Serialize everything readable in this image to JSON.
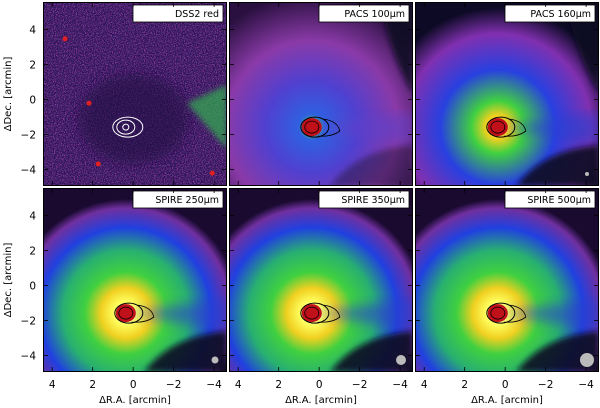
{
  "panels": [
    {
      "label": "DSS2 red",
      "style": "dss",
      "beam": 0
    },
    {
      "label": "PACS 100μm",
      "style": "pacs1",
      "beam": 0
    },
    {
      "label": "PACS 160μm",
      "style": "pacs2",
      "beam": 1
    },
    {
      "label": "SPIRE 250μm",
      "style": "spire",
      "beam": 2
    },
    {
      "label": "SPIRE 350μm",
      "style": "spire",
      "beam": 3
    },
    {
      "label": "SPIRE 500μm",
      "style": "spire",
      "beam": 4
    }
  ],
  "x_axis": {
    "label": "ΔR.A. [arcmin]",
    "ticks": [
      "4",
      "2",
      "0",
      "−2",
      "−4"
    ]
  },
  "y_axis": {
    "label": "ΔDec. [arcmin]",
    "ticks": [
      "4",
      "2",
      "0",
      "−2",
      "−4"
    ]
  },
  "colors": {
    "background": "#0a0a20",
    "core": "#c0101a",
    "yellow": "#f0e030",
    "green": "#30c840",
    "blue": "#2040e0",
    "magenta": "#a040b0"
  }
}
